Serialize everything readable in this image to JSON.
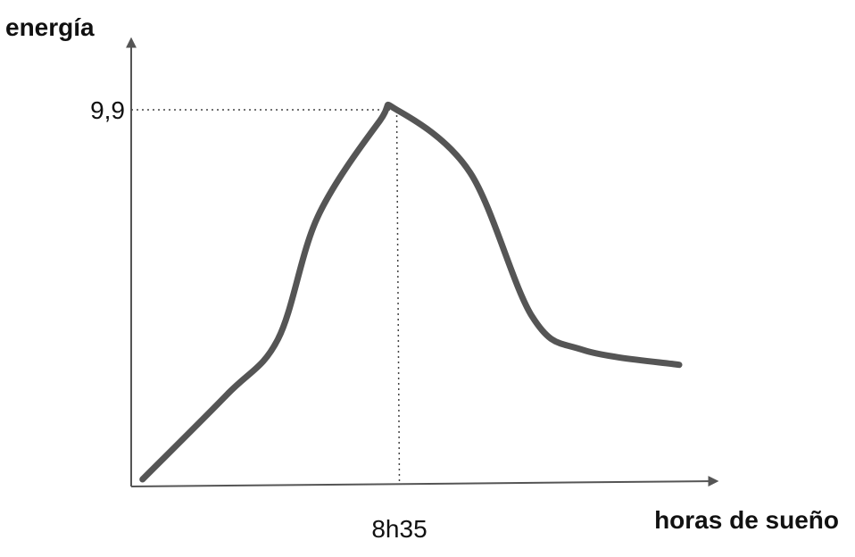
{
  "chart_data": {
    "type": "line",
    "ylabel": "energía",
    "xlabel": "horas de sueño",
    "peak": {
      "x_label": "8h35",
      "y_label": "9,9",
      "y": 9.9
    },
    "series": [
      {
        "points": [
          [
            0.02,
            0.0
          ],
          [
            0.17,
            0.23
          ],
          [
            0.26,
            0.38
          ],
          [
            0.33,
            0.71
          ],
          [
            0.44,
            0.97
          ],
          [
            0.47,
            1.0
          ],
          [
            0.6,
            0.83
          ],
          [
            0.71,
            0.44
          ],
          [
            0.8,
            0.35
          ],
          [
            0.97,
            0.31
          ]
        ]
      }
    ],
    "grid": false,
    "axis_color": "#555555",
    "curve_color": "#555555",
    "guide_color": "#444444"
  }
}
